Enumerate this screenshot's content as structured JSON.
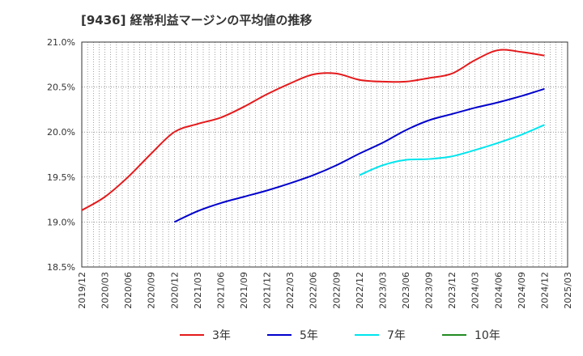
{
  "chart_data": {
    "type": "line",
    "title": "[9436]  経常利益マージンの平均値の推移",
    "xlabel": "",
    "ylabel": "",
    "ylim": [
      18.5,
      21.0
    ],
    "yticks": [
      18.5,
      19.0,
      19.5,
      20.0,
      20.5,
      21.0
    ],
    "ytick_labels": [
      "18.5%",
      "19.0%",
      "19.5%",
      "20.0%",
      "20.5%",
      "21.0%"
    ],
    "xticks": [
      "2019/12",
      "2020/03",
      "2020/06",
      "2020/09",
      "2020/12",
      "2021/03",
      "2021/06",
      "2021/09",
      "2021/12",
      "2022/03",
      "2022/06",
      "2022/09",
      "2022/12",
      "2023/03",
      "2023/06",
      "2023/09",
      "2023/12",
      "2024/03",
      "2024/06",
      "2024/09",
      "2024/12",
      "2025/03"
    ],
    "grid": true,
    "legend_position": "bottom",
    "series": [
      {
        "name": "3年",
        "color": "#e41a1c",
        "x": [
          "2019/12",
          "2020/03",
          "2020/06",
          "2020/09",
          "2020/12",
          "2021/03",
          "2021/06",
          "2021/09",
          "2021/12",
          "2022/03",
          "2022/06",
          "2022/09",
          "2022/12",
          "2023/03",
          "2023/06",
          "2023/09",
          "2023/12",
          "2024/03",
          "2024/06",
          "2024/09",
          "2024/12"
        ],
        "values": [
          19.13,
          19.28,
          19.5,
          19.76,
          20.0,
          20.09,
          20.16,
          20.28,
          20.42,
          20.54,
          20.64,
          20.65,
          20.58,
          20.56,
          20.56,
          20.6,
          20.65,
          20.8,
          20.91,
          20.89,
          20.85
        ]
      },
      {
        "name": "5年",
        "color": "#0000cc",
        "x": [
          "2020/12",
          "2021/03",
          "2021/06",
          "2021/09",
          "2021/12",
          "2022/03",
          "2022/06",
          "2022/09",
          "2022/12",
          "2023/03",
          "2023/06",
          "2023/09",
          "2023/12",
          "2024/03",
          "2024/06",
          "2024/09",
          "2024/12"
        ],
        "values": [
          19.0,
          19.12,
          19.21,
          19.28,
          19.35,
          19.43,
          19.52,
          19.63,
          19.76,
          19.88,
          20.02,
          20.13,
          20.2,
          20.27,
          20.33,
          20.4,
          20.48
        ]
      },
      {
        "name": "7年",
        "color": "#00e5ee",
        "x": [
          "2022/12",
          "2023/03",
          "2023/06",
          "2023/09",
          "2023/12",
          "2024/03",
          "2024/06",
          "2024/09",
          "2024/12"
        ],
        "values": [
          19.52,
          19.63,
          19.69,
          19.7,
          19.73,
          19.8,
          19.88,
          19.97,
          20.08
        ]
      },
      {
        "name": "10年",
        "color": "#228b22",
        "x": [],
        "values": []
      }
    ]
  }
}
